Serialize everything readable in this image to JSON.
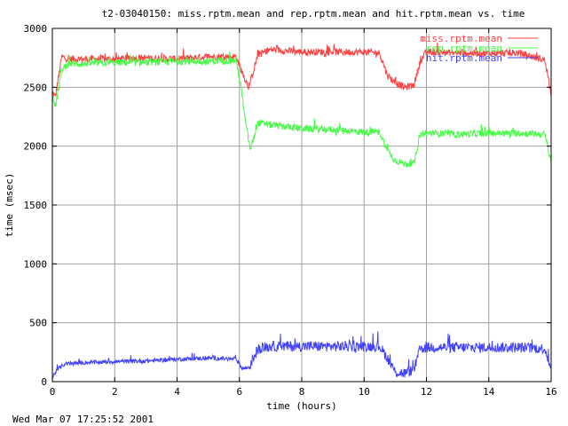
{
  "chart_data": {
    "type": "line",
    "title": "t2-03040150: miss.rptm.mean and rep.rptm.mean and hit.rptm.mean vs. time",
    "xlabel": "time (hours)",
    "ylabel": "time (msec)",
    "xlim": [
      0,
      16
    ],
    "ylim": [
      0,
      3000
    ],
    "x_ticks": [
      "0",
      "2",
      "4",
      "6",
      "8",
      "10",
      "12",
      "14",
      "16"
    ],
    "y_ticks": [
      "0",
      "500",
      "1000",
      "1500",
      "2000",
      "2500",
      "3000"
    ],
    "grid": true,
    "legend": "top-right",
    "timestamp": "Wed Mar 07 17:25:52 2001",
    "series": [
      {
        "name": "miss.rptm.mean",
        "color": "#ff4040",
        "x": [
          0,
          0.1,
          0.3,
          0.5,
          1,
          2,
          3,
          4,
          5,
          5.9,
          6.05,
          6.3,
          6.6,
          7,
          8,
          9,
          10,
          10.5,
          10.75,
          11,
          11.3,
          11.6,
          11.8,
          12,
          13,
          14,
          15,
          15.8,
          16
        ],
        "values": [
          2460,
          2420,
          2760,
          2740,
          2740,
          2740,
          2750,
          2740,
          2760,
          2760,
          2650,
          2500,
          2780,
          2820,
          2800,
          2800,
          2800,
          2790,
          2600,
          2540,
          2500,
          2520,
          2720,
          2800,
          2790,
          2790,
          2790,
          2730,
          2450
        ]
      },
      {
        "name": "rep.rptm.mean",
        "color": "#40ff40",
        "x": [
          0,
          0.1,
          0.3,
          0.5,
          1,
          2,
          3,
          4,
          5,
          5.9,
          6.05,
          6.2,
          6.35,
          6.6,
          7,
          8,
          9,
          10,
          10.5,
          10.75,
          11,
          11.3,
          11.6,
          11.8,
          12,
          13,
          14,
          15,
          15.8,
          16
        ],
        "values": [
          2450,
          2330,
          2650,
          2700,
          2700,
          2710,
          2710,
          2720,
          2720,
          2730,
          2500,
          2200,
          1970,
          2200,
          2180,
          2150,
          2140,
          2120,
          2120,
          1960,
          1880,
          1850,
          1850,
          2100,
          2110,
          2100,
          2110,
          2110,
          2100,
          1870
        ]
      },
      {
        "name": "hit.rptm.mean",
        "color": "#4040ff",
        "x": [
          0,
          0.05,
          0.15,
          0.4,
          1,
          2,
          3,
          4,
          5,
          5.9,
          6.1,
          6.3,
          6.6,
          7,
          8,
          9,
          10,
          10.5,
          10.75,
          11,
          11.3,
          11.6,
          11.8,
          12,
          13,
          14,
          15,
          15.8,
          16
        ],
        "values": [
          20,
          60,
          100,
          150,
          160,
          170,
          175,
          190,
          200,
          190,
          110,
          120,
          280,
          300,
          300,
          300,
          300,
          300,
          200,
          80,
          70,
          100,
          280,
          290,
          290,
          290,
          290,
          280,
          110
        ]
      }
    ]
  }
}
